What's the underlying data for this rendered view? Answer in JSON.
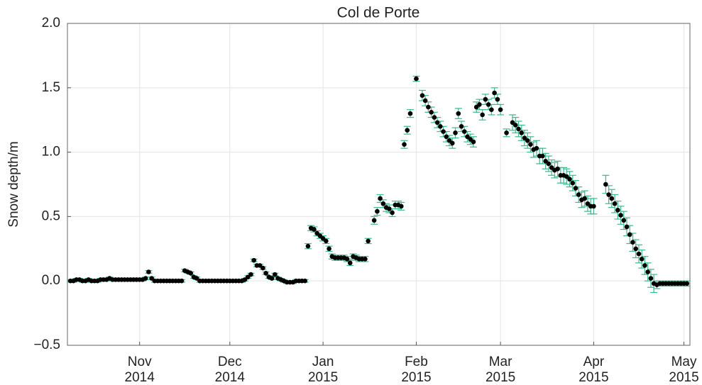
{
  "chart_data": {
    "type": "scatter",
    "title": "Col de Porte",
    "y_label": "Snow depth/m",
    "xlim": [
      -24,
      183
    ],
    "xticks": [
      {
        "value": 0,
        "label": "Nov 2014"
      },
      {
        "value": 30,
        "label": "Dec 2014"
      },
      {
        "value": 61,
        "label": "Jan 2015"
      },
      {
        "value": 92,
        "label": "Feb 2015"
      },
      {
        "value": 120,
        "label": "Mar 2015"
      },
      {
        "value": 151,
        "label": "Apr 2015"
      },
      {
        "value": 181,
        "label": "May 2015"
      }
    ],
    "ylim": [
      -0.5,
      2.0
    ],
    "yticks": [
      {
        "value": -0.5,
        "label": "−0.5"
      },
      {
        "value": 0,
        "label": "0.0"
      },
      0.5,
      {
        "value": 1,
        "label": "1.0"
      },
      1.5,
      {
        "value": 2,
        "label": "2.0"
      }
    ],
    "grid": true,
    "x": [
      -23,
      -22,
      -21,
      -20,
      -19,
      -18,
      -17,
      -16,
      -15,
      -14,
      -13,
      -12,
      -11,
      -10,
      -9,
      -8,
      -7,
      -6,
      -5,
      -4,
      -3,
      -2,
      -1,
      0,
      1,
      2,
      3,
      4,
      5,
      6,
      7,
      8,
      9,
      10,
      11,
      12,
      13,
      14,
      15,
      16,
      17,
      18,
      19,
      20,
      21,
      22,
      23,
      24,
      25,
      26,
      27,
      28,
      29,
      30,
      31,
      32,
      33,
      34,
      35,
      36,
      37,
      38,
      39,
      40,
      41,
      42,
      43,
      44,
      45,
      46,
      47,
      48,
      49,
      50,
      51,
      52,
      53,
      54,
      55,
      56,
      57,
      58,
      59,
      60,
      61,
      62,
      63,
      64,
      65,
      66,
      67,
      68,
      69,
      70,
      71,
      72,
      73,
      74,
      75,
      76,
      78,
      79,
      80,
      81,
      82,
      83,
      84,
      85,
      86,
      87,
      88,
      89,
      90,
      92,
      94,
      95,
      96,
      97,
      98,
      99,
      100,
      101,
      102,
      103,
      104,
      105,
      106,
      107,
      108,
      109,
      110,
      111,
      112,
      113,
      114,
      115,
      116,
      117,
      118,
      119,
      120,
      122,
      124,
      125,
      126,
      127,
      128,
      129,
      130,
      131,
      132,
      133,
      134,
      135,
      136,
      137,
      138,
      139,
      140,
      141,
      142,
      143,
      144,
      145,
      146,
      147,
      148,
      149,
      150,
      151,
      155,
      156,
      157,
      158,
      159,
      160,
      161,
      162,
      163,
      164,
      165,
      166,
      167,
      168,
      169,
      170,
      171,
      172,
      173,
      174,
      175,
      176,
      177,
      178,
      179,
      180,
      181,
      182
    ],
    "series": [
      {
        "color": "#000000",
        "error_color": "#3cb88f",
        "values": [
          0,
          0,
          0.01,
          0.01,
          0,
          0,
          0.01,
          0,
          0,
          0,
          0.01,
          0.01,
          0.01,
          0.02,
          0.01,
          0.01,
          0.01,
          0.01,
          0.01,
          0.01,
          0.01,
          0.01,
          0.01,
          0.01,
          0.01,
          0.02,
          0.07,
          0.02,
          0,
          0,
          0,
          0,
          0,
          0,
          0,
          0,
          0,
          0,
          0.08,
          0.07,
          0.06,
          0.03,
          0.02,
          0,
          0,
          0,
          0,
          0,
          0,
          0,
          0,
          0,
          0,
          0,
          0,
          0,
          0,
          0,
          0.01,
          0.03,
          0.05,
          0.16,
          0.12,
          0.12,
          0.1,
          0.06,
          0.03,
          0.02,
          0.05,
          0.02,
          0.01,
          0,
          -0.01,
          -0.01,
          -0.01,
          0,
          0,
          0,
          0,
          0.27,
          0.41,
          0.4,
          0.37,
          0.35,
          0.33,
          0.31,
          0.25,
          0.19,
          0.18,
          0.18,
          0.18,
          0.18,
          0.17,
          0.14,
          0.19,
          0.18,
          0.17,
          0.17,
          0.17,
          0.31,
          0.47,
          0.54,
          0.64,
          0.6,
          0.57,
          0.56,
          0.53,
          0.59,
          0.59,
          0.58,
          1.06,
          1.17,
          1.3,
          1.57,
          1.44,
          1.4,
          1.35,
          1.31,
          1.27,
          1.23,
          1.2,
          1.16,
          1.12,
          1.09,
          1.07,
          1.15,
          1.3,
          1.2,
          1.16,
          1.12,
          1.1,
          1.08,
          1.35,
          1.37,
          1.29,
          1.41,
          1.37,
          1.33,
          1.46,
          1.41,
          1.33,
          1.15,
          1.23,
          1.21,
          1.18,
          1.15,
          1.11,
          1.09,
          1.06,
          1.02,
          1.03,
          0.97,
          0.97,
          0.93,
          0.91,
          0.88,
          0.86,
          0.87,
          0.82,
          0.82,
          0.81,
          0.79,
          0.76,
          0.72,
          0.67,
          0.63,
          0.64,
          0.6,
          0.58,
          0.58,
          0.75,
          0.67,
          0.64,
          0.6,
          0.55,
          0.51,
          0.47,
          0.42,
          0.36,
          0.3,
          0.25,
          0.21,
          0.17,
          0.12,
          0.07,
          0.02,
          -0.02,
          -0.03,
          -0.02,
          -0.02,
          -0.02,
          -0.02,
          -0.02,
          -0.02,
          -0.02,
          -0.02,
          -0.02,
          -0.02
        ],
        "errors": [
          0.01,
          0.01,
          0.01,
          0.01,
          0.01,
          0.01,
          0.01,
          0.01,
          0.01,
          0.01,
          0.01,
          0.01,
          0.01,
          0.01,
          0.01,
          0.01,
          0.01,
          0.01,
          0.01,
          0.01,
          0.01,
          0.01,
          0.01,
          0.01,
          0.01,
          0.01,
          0.01,
          0.01,
          0.01,
          0.01,
          0.01,
          0.01,
          0.01,
          0.01,
          0.01,
          0.01,
          0.01,
          0.01,
          0.01,
          0.01,
          0.01,
          0.01,
          0.01,
          0.01,
          0.01,
          0.01,
          0.01,
          0.01,
          0.01,
          0.01,
          0.01,
          0.01,
          0.01,
          0.01,
          0.01,
          0.01,
          0.01,
          0.01,
          0.01,
          0.01,
          0.01,
          0.01,
          0.01,
          0.01,
          0.01,
          0.01,
          0.01,
          0.01,
          0.01,
          0.01,
          0.01,
          0.01,
          0.01,
          0.01,
          0.01,
          0.01,
          0.01,
          0.01,
          0.01,
          0.02,
          0.02,
          0.02,
          0.02,
          0.02,
          0.02,
          0.02,
          0.02,
          0.02,
          0.02,
          0.02,
          0.02,
          0.02,
          0.02,
          0.02,
          0.02,
          0.02,
          0.02,
          0.02,
          0.02,
          0.02,
          0.03,
          0.03,
          0.03,
          0.03,
          0.03,
          0.03,
          0.03,
          0.03,
          0.03,
          0.03,
          0.03,
          0.03,
          0.03,
          0.02,
          0.04,
          0.04,
          0.04,
          0.04,
          0.04,
          0.04,
          0.04,
          0.04,
          0.04,
          0.04,
          0.04,
          0.04,
          0.04,
          0.04,
          0.04,
          0.04,
          0.04,
          0.04,
          0.04,
          0.04,
          0.04,
          0.04,
          0.04,
          0.04,
          0.04,
          0.04,
          0.04,
          0.03,
          0.06,
          0.06,
          0.06,
          0.06,
          0.06,
          0.06,
          0.06,
          0.06,
          0.06,
          0.06,
          0.06,
          0.06,
          0.06,
          0.06,
          0.06,
          0.06,
          0.06,
          0.06,
          0.06,
          0.06,
          0.06,
          0.06,
          0.06,
          0.06,
          0.06,
          0.06,
          0.06,
          0.06,
          0.07,
          0.07,
          0.07,
          0.07,
          0.07,
          0.07,
          0.07,
          0.07,
          0.07,
          0.07,
          0.07,
          0.07,
          0.07,
          0.07,
          0.07,
          0.07,
          0.07,
          0.03,
          0.02,
          0.02,
          0.02,
          0.02,
          0.02,
          0.02,
          0.02,
          0.02,
          0.02,
          0.02
        ]
      }
    ]
  }
}
